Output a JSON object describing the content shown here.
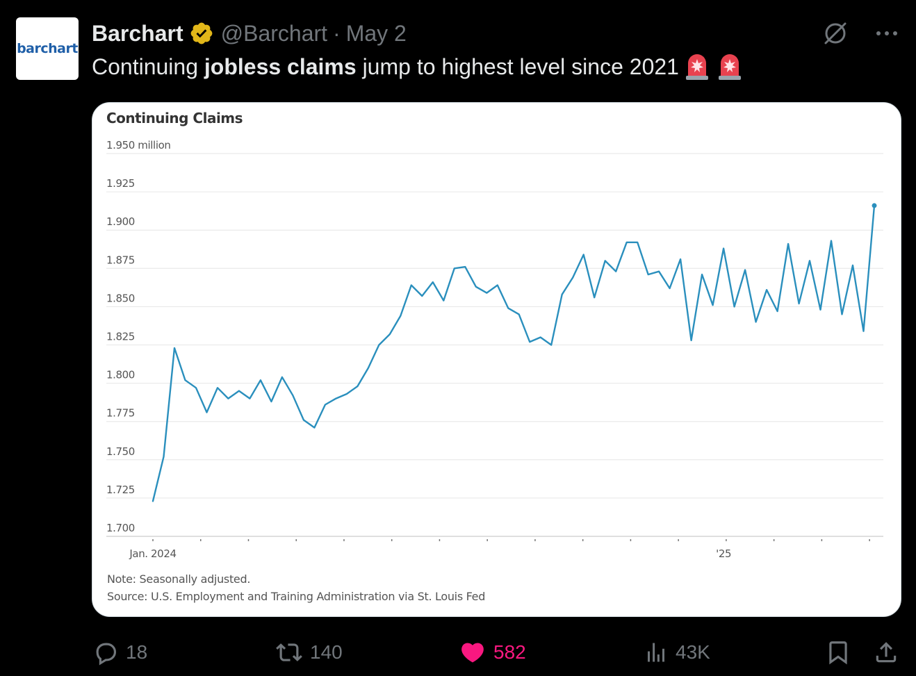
{
  "author": {
    "avatar_text": "barchart",
    "name": "Barchart",
    "handle": "@Barchart",
    "separator": "·",
    "date": "May 2"
  },
  "tweet": {
    "text_before": "Continuing ",
    "text_bold": "jobless claims",
    "text_after": " jump to highest level since 2021"
  },
  "icons": {
    "grok": "grok-icon",
    "more": "more-icon",
    "siren": "police-light-emoji"
  },
  "chart_data": {
    "type": "line",
    "title": "Continuing Claims",
    "ylabel": "",
    "xlabel": "",
    "ylim": [
      1.7,
      1.95
    ],
    "yticks": [
      1.7,
      1.725,
      1.75,
      1.775,
      1.8,
      1.825,
      1.85,
      1.875,
      1.9,
      1.925,
      1.95
    ],
    "ytick_labels": [
      "1.700",
      "1.725",
      "1.750",
      "1.775",
      "1.800",
      "1.825",
      "1.850",
      "1.875",
      "1.900",
      "1.925",
      "1.950 million"
    ],
    "xtick_labels": [
      {
        "label": "Jan. 2024",
        "index": 0
      },
      {
        "label": "'25",
        "index": 53
      }
    ],
    "line_color": "#2a8fbd",
    "note": "Note: Seasonally adjusted.",
    "source": "Source: U.S. Employment and Training Administration via St. Louis Fed",
    "series": [
      {
        "values": [
          1.723,
          1.752,
          1.823,
          1.802,
          1.797,
          1.781,
          1.797,
          1.79,
          1.795,
          1.79,
          1.802,
          1.788,
          1.804,
          1.792,
          1.776,
          1.771,
          1.786,
          1.79,
          1.793,
          1.798,
          1.81,
          1.825,
          1.832,
          1.844,
          1.864,
          1.857,
          1.866,
          1.854,
          1.875,
          1.876,
          1.863,
          1.859,
          1.864,
          1.849,
          1.845,
          1.827,
          1.83,
          1.825,
          1.858,
          1.869,
          1.884,
          1.856,
          1.88,
          1.873,
          1.892,
          1.892,
          1.871,
          1.873,
          1.862,
          1.881,
          1.828,
          1.871,
          1.851,
          1.888,
          1.85,
          1.874,
          1.84,
          1.861,
          1.847,
          1.891,
          1.852,
          1.88,
          1.848,
          1.893,
          1.845,
          1.877,
          1.834,
          1.916
        ]
      }
    ]
  },
  "actions": {
    "replies": "18",
    "retweets": "140",
    "likes": "582",
    "views": "43K"
  }
}
